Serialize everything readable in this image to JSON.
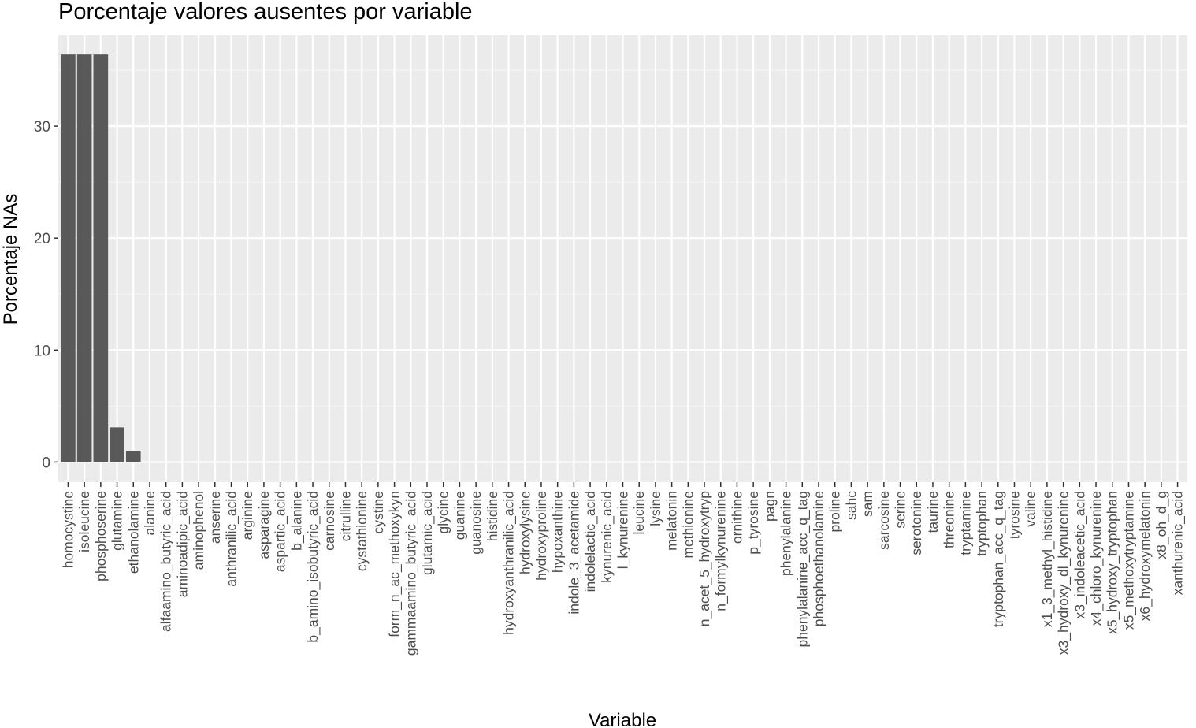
{
  "chart_data": {
    "type": "bar",
    "title": "Porcentaje valores ausentes por variable",
    "xlabel": "Variable",
    "ylabel": "Porcentaje NAs",
    "ylim": [
      -1.8,
      38.1
    ],
    "yticks": [
      0,
      10,
      20,
      30
    ],
    "grid": true,
    "colors": {
      "bar": "#595959",
      "panel": "#ebebeb",
      "grid_major": "#ffffff",
      "grid_minor": "#f5f5f5",
      "tick_text": "#4d4d4d"
    },
    "categories": [
      "homocystine",
      "isoleucine",
      "phosphoserine",
      "glutamine",
      "ethanolamine",
      "alanine",
      "alfaamino_butyric_acid",
      "aminoadipic_acid",
      "aminophenol",
      "anserine",
      "anthranilic_acid",
      "arginine",
      "asparagine",
      "aspartic_acid",
      "b_alanine",
      "b_amino_isobutyric_acid",
      "carnosine",
      "citrulline",
      "cystathionine",
      "cystine",
      "form_n_ac_methoxykyn",
      "gammaamino_butyric_acid",
      "glutamic_acid",
      "glycine",
      "guanine",
      "guanosine",
      "histidine",
      "hydroxyanthranilic_acid",
      "hydroxylysine",
      "hydroxyproline",
      "hypoxanthine",
      "indole_3_acetamide",
      "indolelactic_acid",
      "kynurenic_acid",
      "l_kynurenine",
      "leucine",
      "lysine",
      "melatonin",
      "methionine",
      "n_acet_5_hydroxytryp",
      "n_formylkynurenine",
      "ornithine",
      "p_tyrosine",
      "pagn",
      "phenylalanine",
      "phenylalanine_acc_q_tag",
      "phosphoethanolamine",
      "proline",
      "sahc",
      "sam",
      "sarcosine",
      "serine",
      "serotonine",
      "taurine",
      "threonine",
      "tryptamine",
      "tryptophan",
      "tryptophan_acc_q_tag",
      "tyrosine",
      "valine",
      "x1_3_methyl_histidine",
      "x3_hydroxy_dl_kynurenine",
      "x3_indoleacetic_acid",
      "x4_chloro_kynurenine",
      "x5_hydroxy_tryptophan",
      "x5_methoxytryptamine",
      "x6_hydroxymelatonin",
      "x8_oh_d_g",
      "xanthurenic_acid"
    ],
    "values": [
      36.4,
      36.4,
      36.4,
      3.1,
      1.0,
      0,
      0,
      0,
      0,
      0,
      0,
      0,
      0,
      0,
      0,
      0,
      0,
      0,
      0,
      0,
      0,
      0,
      0,
      0,
      0,
      0,
      0,
      0,
      0,
      0,
      0,
      0,
      0,
      0,
      0,
      0,
      0,
      0,
      0,
      0,
      0,
      0,
      0,
      0,
      0,
      0,
      0,
      0,
      0,
      0,
      0,
      0,
      0,
      0,
      0,
      0,
      0,
      0,
      0,
      0,
      0,
      0,
      0,
      0,
      0,
      0,
      0,
      0,
      0
    ]
  }
}
